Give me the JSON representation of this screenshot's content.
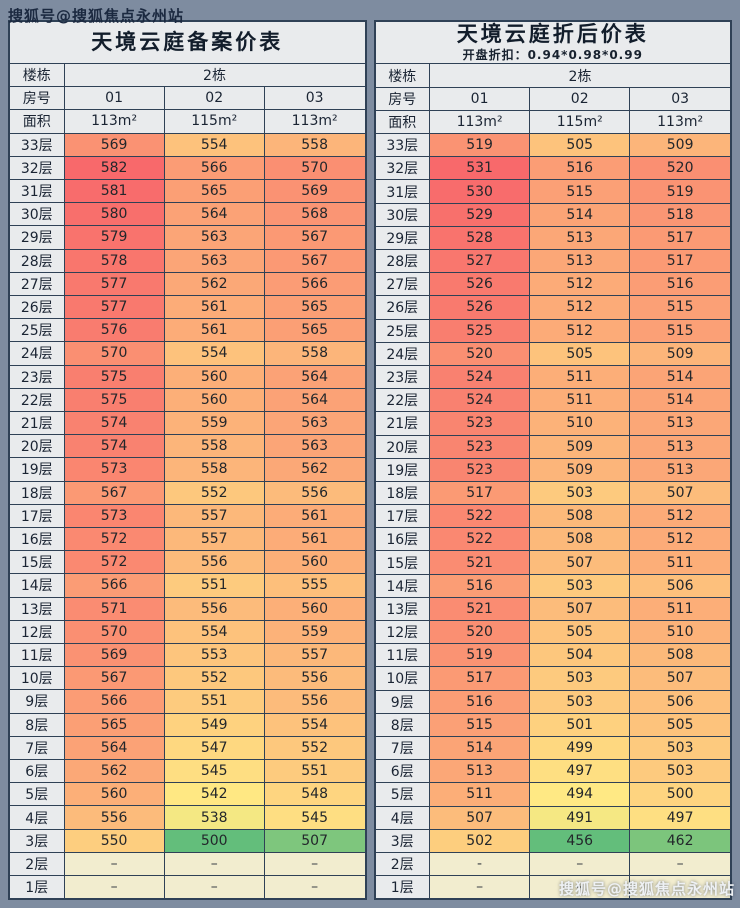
{
  "watermarks": {
    "top": "搜狐号@搜狐焦点永州站",
    "bottom": "搜狐号@搜狐焦点永州站"
  },
  "colors": {
    "background": "#7E8CA0",
    "border": "#2F4156",
    "header_bg": "#E9EBED",
    "empty_bg": "#F2EDCF",
    "heat_low": "#63BE7B",
    "heat_mid": "#FFEB84",
    "heat_high": "#F8696B"
  },
  "chart_data": [
    {
      "type": "heatmap",
      "title": "天境云庭备案价表",
      "subtitle": "",
      "building_label": "楼栋",
      "building_value": "2栋",
      "room_label": "房号",
      "rooms": [
        "01",
        "02",
        "03"
      ],
      "area_label": "面积",
      "areas": [
        "113m²",
        "115m²",
        "113m²"
      ],
      "rows": [
        {
          "floor": "33层",
          "values": [
            "569",
            "554",
            "558"
          ]
        },
        {
          "floor": "32层",
          "values": [
            "582",
            "566",
            "570"
          ]
        },
        {
          "floor": "31层",
          "values": [
            "581",
            "565",
            "569"
          ]
        },
        {
          "floor": "30层",
          "values": [
            "580",
            "564",
            "568"
          ]
        },
        {
          "floor": "29层",
          "values": [
            "579",
            "563",
            "567"
          ]
        },
        {
          "floor": "28层",
          "values": [
            "578",
            "563",
            "567"
          ]
        },
        {
          "floor": "27层",
          "values": [
            "577",
            "562",
            "566"
          ]
        },
        {
          "floor": "26层",
          "values": [
            "577",
            "561",
            "565"
          ]
        },
        {
          "floor": "25层",
          "values": [
            "576",
            "561",
            "565"
          ]
        },
        {
          "floor": "24层",
          "values": [
            "570",
            "554",
            "558"
          ]
        },
        {
          "floor": "23层",
          "values": [
            "575",
            "560",
            "564"
          ]
        },
        {
          "floor": "22层",
          "values": [
            "575",
            "560",
            "564"
          ]
        },
        {
          "floor": "21层",
          "values": [
            "574",
            "559",
            "563"
          ]
        },
        {
          "floor": "20层",
          "values": [
            "574",
            "558",
            "563"
          ]
        },
        {
          "floor": "19层",
          "values": [
            "573",
            "558",
            "562"
          ]
        },
        {
          "floor": "18层",
          "values": [
            "567",
            "552",
            "556"
          ]
        },
        {
          "floor": "17层",
          "values": [
            "573",
            "557",
            "561"
          ]
        },
        {
          "floor": "16层",
          "values": [
            "572",
            "557",
            "561"
          ]
        },
        {
          "floor": "15层",
          "values": [
            "572",
            "556",
            "560"
          ]
        },
        {
          "floor": "14层",
          "values": [
            "566",
            "551",
            "555"
          ]
        },
        {
          "floor": "13层",
          "values": [
            "571",
            "556",
            "560"
          ]
        },
        {
          "floor": "12层",
          "values": [
            "570",
            "554",
            "559"
          ]
        },
        {
          "floor": "11层",
          "values": [
            "569",
            "553",
            "557"
          ]
        },
        {
          "floor": "10层",
          "values": [
            "567",
            "552",
            "556"
          ]
        },
        {
          "floor": "9层",
          "values": [
            "566",
            "551",
            "556"
          ]
        },
        {
          "floor": "8层",
          "values": [
            "565",
            "549",
            "554"
          ]
        },
        {
          "floor": "7层",
          "values": [
            "564",
            "547",
            "552"
          ]
        },
        {
          "floor": "6层",
          "values": [
            "562",
            "545",
            "551"
          ]
        },
        {
          "floor": "5层",
          "values": [
            "560",
            "542",
            "548"
          ]
        },
        {
          "floor": "4层",
          "values": [
            "556",
            "538",
            "545"
          ]
        },
        {
          "floor": "3层",
          "values": [
            "550",
            "500",
            "507"
          ]
        },
        {
          "floor": "2层",
          "values": [
            "–",
            "–",
            "–"
          ]
        },
        {
          "floor": "1层",
          "values": [
            "–",
            "–",
            "–"
          ]
        }
      ]
    },
    {
      "type": "heatmap",
      "title": "天境云庭折后价表",
      "subtitle": "开盘折扣：0.94*0.98*0.99",
      "building_label": "楼栋",
      "building_value": "2栋",
      "room_label": "房号",
      "rooms": [
        "01",
        "02",
        "03"
      ],
      "area_label": "面积",
      "areas": [
        "113m²",
        "115m²",
        "113m²"
      ],
      "rows": [
        {
          "floor": "33层",
          "values": [
            "519",
            "505",
            "509"
          ]
        },
        {
          "floor": "32层",
          "values": [
            "531",
            "516",
            "520"
          ]
        },
        {
          "floor": "31层",
          "values": [
            "530",
            "515",
            "519"
          ]
        },
        {
          "floor": "30层",
          "values": [
            "529",
            "514",
            "518"
          ]
        },
        {
          "floor": "29层",
          "values": [
            "528",
            "513",
            "517"
          ]
        },
        {
          "floor": "28层",
          "values": [
            "527",
            "513",
            "517"
          ]
        },
        {
          "floor": "27层",
          "values": [
            "526",
            "512",
            "516"
          ]
        },
        {
          "floor": "26层",
          "values": [
            "526",
            "512",
            "515"
          ]
        },
        {
          "floor": "25层",
          "values": [
            "525",
            "512",
            "515"
          ]
        },
        {
          "floor": "24层",
          "values": [
            "520",
            "505",
            "509"
          ]
        },
        {
          "floor": "23层",
          "values": [
            "524",
            "511",
            "514"
          ]
        },
        {
          "floor": "22层",
          "values": [
            "524",
            "511",
            "514"
          ]
        },
        {
          "floor": "21层",
          "values": [
            "523",
            "510",
            "513"
          ]
        },
        {
          "floor": "20层",
          "values": [
            "523",
            "509",
            "513"
          ]
        },
        {
          "floor": "19层",
          "values": [
            "523",
            "509",
            "513"
          ]
        },
        {
          "floor": "18层",
          "values": [
            "517",
            "503",
            "507"
          ]
        },
        {
          "floor": "17层",
          "values": [
            "522",
            "508",
            "512"
          ]
        },
        {
          "floor": "16层",
          "values": [
            "522",
            "508",
            "512"
          ]
        },
        {
          "floor": "15层",
          "values": [
            "521",
            "507",
            "511"
          ]
        },
        {
          "floor": "14层",
          "values": [
            "516",
            "503",
            "506"
          ]
        },
        {
          "floor": "13层",
          "values": [
            "521",
            "507",
            "511"
          ]
        },
        {
          "floor": "12层",
          "values": [
            "520",
            "505",
            "510"
          ]
        },
        {
          "floor": "11层",
          "values": [
            "519",
            "504",
            "508"
          ]
        },
        {
          "floor": "10层",
          "values": [
            "517",
            "503",
            "507"
          ]
        },
        {
          "floor": "9层",
          "values": [
            "516",
            "503",
            "506"
          ]
        },
        {
          "floor": "8层",
          "values": [
            "515",
            "501",
            "505"
          ]
        },
        {
          "floor": "7层",
          "values": [
            "514",
            "499",
            "503"
          ]
        },
        {
          "floor": "6层",
          "values": [
            "513",
            "497",
            "503"
          ]
        },
        {
          "floor": "5层",
          "values": [
            "511",
            "494",
            "500"
          ]
        },
        {
          "floor": "4层",
          "values": [
            "507",
            "491",
            "497"
          ]
        },
        {
          "floor": "3层",
          "values": [
            "502",
            "456",
            "462"
          ]
        },
        {
          "floor": "2层",
          "values": [
            "-",
            "–",
            "–"
          ]
        },
        {
          "floor": "1层",
          "values": [
            "–",
            "–",
            "–"
          ]
        }
      ]
    }
  ]
}
